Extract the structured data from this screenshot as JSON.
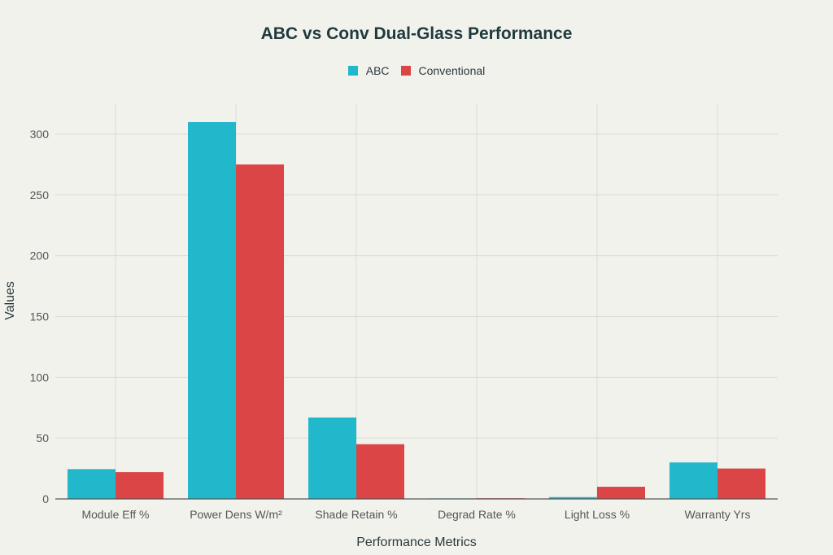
{
  "chart_data": {
    "type": "bar",
    "title": "ABC vs Conv Dual-Glass Performance",
    "xlabel": "Performance Metrics",
    "ylabel": "Values",
    "categories": [
      "Module Eff %",
      "Power Dens W/m²",
      "Shade Retain %",
      "Degrad Rate %",
      "Light Loss %",
      "Warranty Yrs"
    ],
    "series": [
      {
        "name": "ABC",
        "color": "#21b8cc",
        "values": [
          24.5,
          310,
          67,
          0.4,
          1.5,
          30
        ]
      },
      {
        "name": "Conventional",
        "color": "#db4545",
        "values": [
          22,
          275,
          45,
          0.55,
          10,
          25
        ]
      }
    ],
    "ylim": [
      0,
      325
    ],
    "yticks": [
      0,
      50,
      100,
      150,
      200,
      250,
      300
    ],
    "grid": true,
    "legend_position": "top-center"
  }
}
